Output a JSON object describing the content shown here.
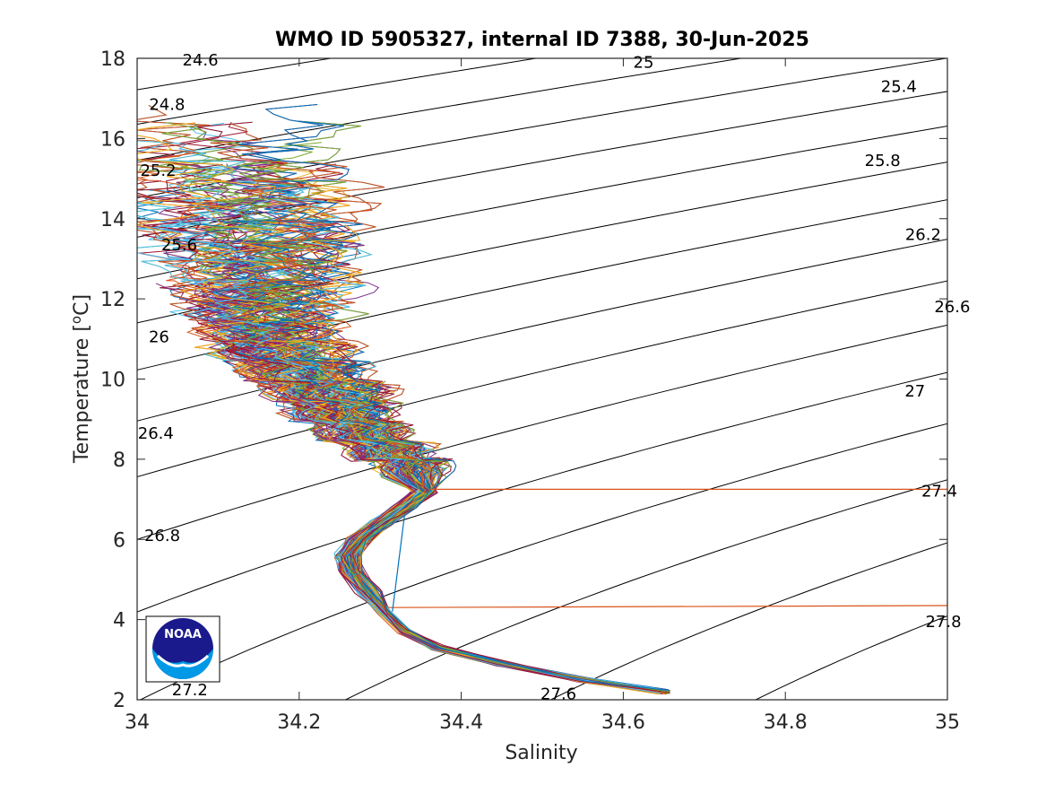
{
  "chart_data": {
    "type": "line",
    "title": "WMO ID 5905327, internal ID 7388, 30-Jun-2025",
    "xlabel": "Salinity",
    "ylabel": "Temperature [°C]",
    "ylabel_base": "Temperature [",
    "ylabel_unit": "C]",
    "ylabel_sup": "o",
    "xlim": [
      34,
      35
    ],
    "ylim": [
      2,
      18
    ],
    "xticks": [
      "34",
      "34.2",
      "34.4",
      "34.6",
      "34.8",
      "35"
    ],
    "yticks": [
      "2",
      "4",
      "6",
      "8",
      "10",
      "12",
      "14",
      "16",
      "18"
    ],
    "xtick_values": [
      34,
      34.2,
      34.4,
      34.6,
      34.8,
      35
    ],
    "ytick_values": [
      2,
      4,
      6,
      8,
      10,
      12,
      14,
      16,
      18
    ],
    "grid": false,
    "density_contours": {
      "levels": [
        24.6,
        24.8,
        25,
        25.2,
        25.4,
        25.6,
        25.8,
        26,
        26.2,
        26.4,
        26.6,
        26.8,
        27,
        27.2,
        27.4,
        27.6,
        27.8
      ],
      "labels": [
        "24.6",
        "24.8",
        "25",
        "25.2",
        "25.4",
        "25.6",
        "25.8",
        "26",
        "26.2",
        "26.4",
        "26.6",
        "26.8",
        "27",
        "27.2",
        "27.4",
        "27.6",
        "27.8"
      ],
      "label_positions": [
        {
          "label": "24.6",
          "s": 34.078,
          "t": 17.95
        },
        {
          "label": "24.8",
          "s": 34.037,
          "t": 16.85
        },
        {
          "label": "25",
          "s": 34.625,
          "t": 17.9
        },
        {
          "label": "25.2",
          "s": 34.026,
          "t": 15.2
        },
        {
          "label": "25.4",
          "s": 34.94,
          "t": 17.3
        },
        {
          "label": "25.6",
          "s": 34.052,
          "t": 13.35
        },
        {
          "label": "25.8",
          "s": 34.92,
          "t": 15.45
        },
        {
          "label": "26",
          "s": 34.027,
          "t": 11.05
        },
        {
          "label": "26.2",
          "s": 34.97,
          "t": 13.6
        },
        {
          "label": "26.4",
          "s": 34.023,
          "t": 8.65
        },
        {
          "label": "26.6",
          "s": 35.006,
          "t": 11.8
        },
        {
          "label": "26.8",
          "s": 34.031,
          "t": 6.1
        },
        {
          "label": "27",
          "s": 34.96,
          "t": 9.7
        },
        {
          "label": "27.2",
          "s": 34.065,
          "t": 2.25
        },
        {
          "label": "27.4",
          "s": 34.99,
          "t": 7.2
        },
        {
          "label": "27.6",
          "s": 34.52,
          "t": 2.15
        },
        {
          "label": "27.8",
          "s": 34.995,
          "t": 3.95
        }
      ]
    },
    "profiles": {
      "count": 260,
      "mean_profile": [
        {
          "s": 34.65,
          "t": 2.2
        },
        {
          "s": 34.55,
          "t": 2.5
        },
        {
          "s": 34.45,
          "t": 2.9
        },
        {
          "s": 34.37,
          "t": 3.3
        },
        {
          "s": 34.33,
          "t": 3.7
        },
        {
          "s": 34.305,
          "t": 4.2
        },
        {
          "s": 34.285,
          "t": 4.7
        },
        {
          "s": 34.265,
          "t": 5.2
        },
        {
          "s": 34.26,
          "t": 5.6
        },
        {
          "s": 34.275,
          "t": 6.0
        },
        {
          "s": 34.3,
          "t": 6.4
        },
        {
          "s": 34.33,
          "t": 6.8
        },
        {
          "s": 34.355,
          "t": 7.2
        },
        {
          "s": 34.34,
          "t": 7.6
        },
        {
          "s": 34.31,
          "t": 8.0
        },
        {
          "s": 34.28,
          "t": 8.5
        },
        {
          "s": 34.255,
          "t": 9.0
        },
        {
          "s": 34.235,
          "t": 9.5
        },
        {
          "s": 34.21,
          "t": 10.0
        },
        {
          "s": 34.19,
          "t": 10.5
        },
        {
          "s": 34.175,
          "t": 11.0
        },
        {
          "s": 34.165,
          "t": 11.5
        },
        {
          "s": 34.16,
          "t": 12.0
        },
        {
          "s": 34.155,
          "t": 12.5
        },
        {
          "s": 34.15,
          "t": 13.0
        },
        {
          "s": 34.145,
          "t": 13.5
        },
        {
          "s": 34.14,
          "t": 14.0
        },
        {
          "s": 34.135,
          "t": 14.5
        },
        {
          "s": 34.13,
          "t": 15.0
        },
        {
          "s": 34.125,
          "t": 15.5
        },
        {
          "s": 34.12,
          "t": 16.0
        },
        {
          "s": 34.125,
          "t": 16.4
        }
      ],
      "outliers": [
        {
          "name": "outlier-high",
          "color": "#D95319",
          "points": [
            {
              "s": 34.36,
              "t": 7.25
            },
            {
              "s": 35.0,
              "t": 7.25
            }
          ]
        },
        {
          "name": "outlier-low",
          "color": "#D95319",
          "points": [
            {
              "s": 34.31,
              "t": 4.3
            },
            {
              "s": 35.0,
              "t": 4.35
            }
          ]
        },
        {
          "name": "outlier-blue",
          "color": "#0072BD",
          "points": [
            {
              "s": 34.33,
              "t": 6.6
            },
            {
              "s": 34.315,
              "t": 4.2
            }
          ]
        }
      ],
      "colors": [
        "#0072BD",
        "#D95319",
        "#EDB120",
        "#7E2F8E",
        "#77AC30",
        "#4DBEEE",
        "#A2142F"
      ]
    }
  },
  "logo": {
    "text": "NOAA",
    "colors": {
      "navy": "#1a1a8c",
      "sky": "#0099e6",
      "white": "#ffffff"
    }
  }
}
